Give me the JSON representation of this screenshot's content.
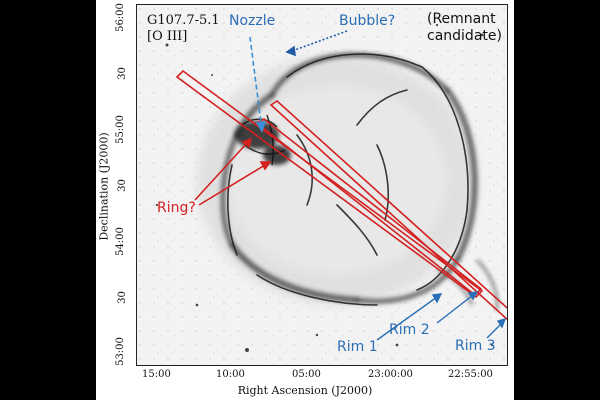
{
  "figure": {
    "object_name": "G107.7-5.1",
    "filter": "[O III]",
    "remnant_note_line1": "(Remnant",
    "remnant_note_line2": "candidate)",
    "x_axis_label": "Right Ascension (J2000)",
    "y_axis_label": "Declination (J2000)",
    "x_ticks": [
      "15:00",
      "10:00",
      "05:00",
      "23:00:00",
      "22:55:00"
    ],
    "y_ticks": [
      "56:00",
      "30",
      "55:00",
      "30",
      "54:00",
      "30",
      "53:00"
    ]
  },
  "annotations": {
    "nozzle": "Nozzle",
    "bubble": "Bubble?",
    "ring": "Ring?",
    "rim1": "Rim 1",
    "rim2": "Rim 2",
    "rim3": "Rim 3"
  },
  "colors": {
    "blue_annotation": "#2a6eb5",
    "red_annotation": "#d42020",
    "background": "#000000"
  }
}
